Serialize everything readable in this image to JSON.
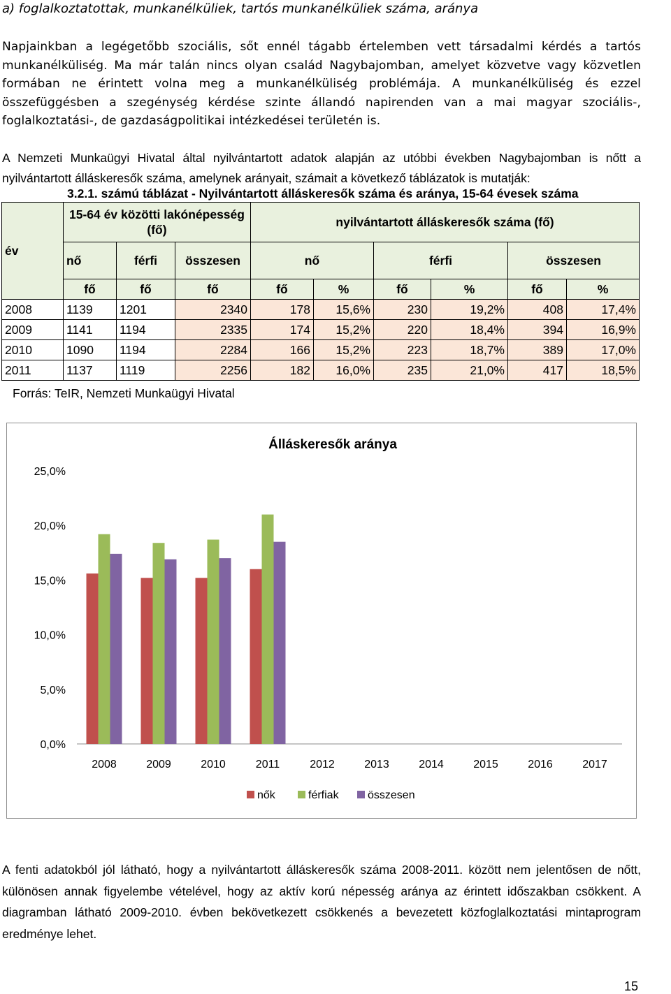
{
  "section_title": "a) foglalkoztatottak, munkanélküliek, tartós munkanélküliek száma, aránya",
  "paragraph1": "Napjainkban a legégetőbb szociális, sőt ennél tágabb értelemben vett társadalmi kérdés a tartós munkanélküliség. Ma már talán nincs olyan család Nagybajomban, amelyet közvetve vagy közvetlen formában ne érintett volna meg a munkanélküliség problémája. A munkanélküliség és ezzel összefüggésben a szegénység kérdése szinte állandó napirenden van a mai magyar szociális-, foglalkoztatási-, de gazdaságpolitikai intézkedései területén is.",
  "paragraph2": "A Nemzeti Munkaügyi Hivatal által nyilvántartott adatok alapján az utóbbi években Nagybajomban is nőtt a nyilvántartott álláskeresők száma, amelynek arányait, számait a következő táblázatok is mutatják:",
  "table": {
    "caption": "3.2.1. számú táblázat - Nyilvántartott álláskeresők száma és aránya, 15-64 évesek száma",
    "col_year": "év",
    "group_population": "15-64 év közötti lakónépesség (fő)",
    "group_registered": "nyilvántartott álláskeresők száma (fő)",
    "sub_headers": [
      "nő",
      "férfi",
      "összesen",
      "nő",
      "férfi",
      "összesen"
    ],
    "unit_headers": [
      "fő",
      "fő",
      "fő",
      "fő",
      "%",
      "fő",
      "%",
      "fő",
      "%"
    ],
    "rows": [
      [
        "2008",
        "1139",
        "1201",
        "2340",
        "178",
        "15,6%",
        "230",
        "19,2%",
        "408",
        "17,4%"
      ],
      [
        "2009",
        "1141",
        "1194",
        "2335",
        "174",
        "15,2%",
        "220",
        "18,4%",
        "394",
        "16,9%"
      ],
      [
        "2010",
        "1090",
        "1194",
        "2284",
        "166",
        "15,2%",
        "223",
        "18,7%",
        "389",
        "17,0%"
      ],
      [
        "2011",
        "1137",
        "1119",
        "2256",
        "182",
        "16,0%",
        "235",
        "21,0%",
        "417",
        "18,5%"
      ]
    ],
    "source": "Forrás: TeIR, Nemzeti Munkaügyi Hivatal"
  },
  "chart_data": {
    "type": "bar",
    "title": "Álláskeresők aránya",
    "categories": [
      "2008",
      "2009",
      "2010",
      "2011",
      "2012",
      "2013",
      "2014",
      "2015",
      "2016",
      "2017"
    ],
    "series": [
      {
        "name": "nők",
        "color": "#c0504d",
        "values": [
          15.6,
          15.2,
          15.2,
          16.0,
          null,
          null,
          null,
          null,
          null,
          null
        ]
      },
      {
        "name": "férfiak",
        "color": "#9bbb59",
        "values": [
          19.2,
          18.4,
          18.7,
          21.0,
          null,
          null,
          null,
          null,
          null,
          null
        ]
      },
      {
        "name": "összesen",
        "color": "#8064a2",
        "values": [
          17.4,
          16.9,
          17.0,
          18.5,
          null,
          null,
          null,
          null,
          null,
          null
        ]
      }
    ],
    "ylim": [
      0,
      25
    ],
    "y_ticks": [
      "0,0%",
      "5,0%",
      "10,0%",
      "15,0%",
      "20,0%",
      "25,0%"
    ],
    "y_tick_values": [
      0,
      5,
      10,
      15,
      20,
      25
    ],
    "legend_position": "bottom",
    "grid": false
  },
  "paragraph3": "A fenti adatokból jól látható, hogy a nyilvántartott álláskeresők száma 2008-2011. között nem jelentősen de nőtt, különösen annak figyelembe vételével, hogy az aktív korú népesség aránya az érintett időszakban csökkent. A diagramban látható 2009-2010. évben bekövetkezett csökkenés a bevezetett közfoglalkoztatási mintaprogram eredménye lehet.",
  "page_number": "15"
}
